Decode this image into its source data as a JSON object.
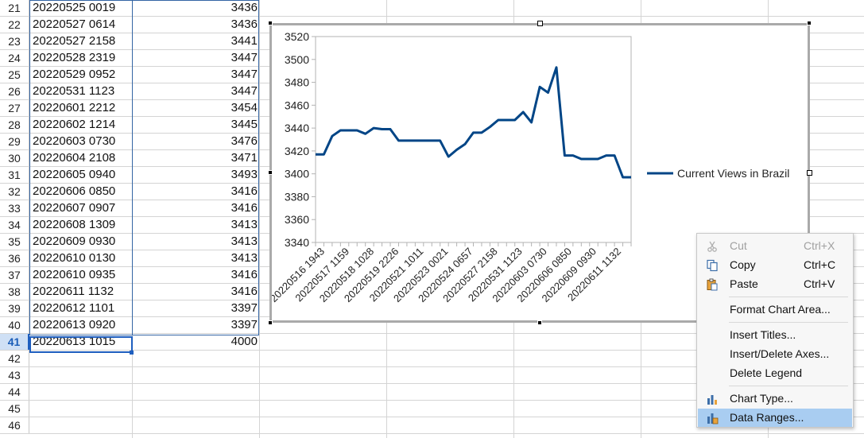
{
  "sheet": {
    "rows": [
      {
        "num": "21",
        "a": "20220525 0019",
        "b": "3436"
      },
      {
        "num": "22",
        "a": "20220527 0614",
        "b": "3436"
      },
      {
        "num": "23",
        "a": "20220527 2158",
        "b": "3441"
      },
      {
        "num": "24",
        "a": "20220528 2319",
        "b": "3447"
      },
      {
        "num": "25",
        "a": "20220529 0952",
        "b": "3447"
      },
      {
        "num": "26",
        "a": "20220531 1123",
        "b": "3447"
      },
      {
        "num": "27",
        "a": "20220601 2212",
        "b": "3454"
      },
      {
        "num": "28",
        "a": "20220602 1214",
        "b": "3445"
      },
      {
        "num": "29",
        "a": "20220603 0730",
        "b": "3476"
      },
      {
        "num": "30",
        "a": "20220604 2108",
        "b": "3471"
      },
      {
        "num": "31",
        "a": "20220605 0940",
        "b": "3493"
      },
      {
        "num": "32",
        "a": "20220606 0850",
        "b": "3416"
      },
      {
        "num": "33",
        "a": "20220607 0907",
        "b": "3416"
      },
      {
        "num": "34",
        "a": "20220608 1309",
        "b": "3413"
      },
      {
        "num": "35",
        "a": "20220609 0930",
        "b": "3413"
      },
      {
        "num": "36",
        "a": "20220610 0130",
        "b": "3413"
      },
      {
        "num": "37",
        "a": "20220610 0935",
        "b": "3416"
      },
      {
        "num": "38",
        "a": "20220611 1132",
        "b": "3416"
      },
      {
        "num": "39",
        "a": "20220612 1101",
        "b": "3397"
      },
      {
        "num": "40",
        "a": "20220613 0920",
        "b": "3397"
      },
      {
        "num": "41",
        "a": "20220613 1015",
        "b": "4000"
      },
      {
        "num": "42",
        "a": "",
        "b": ""
      },
      {
        "num": "43",
        "a": "",
        "b": ""
      },
      {
        "num": "44",
        "a": "",
        "b": ""
      },
      {
        "num": "45",
        "a": "",
        "b": ""
      },
      {
        "num": "46",
        "a": "",
        "b": ""
      }
    ],
    "active_row": "41",
    "selection_color": "#1f5fbf"
  },
  "chart_data": {
    "type": "line",
    "title": "",
    "xlabel": "",
    "ylabel": "",
    "ylim": [
      3340,
      3520
    ],
    "yticks": [
      "3520",
      "3500",
      "3480",
      "3460",
      "3440",
      "3420",
      "3400",
      "3380",
      "3360",
      "3340"
    ],
    "xtick_labels": [
      "20220516 1943",
      "20220517 1159",
      "20220518 1028",
      "20220519 2226",
      "20220521 1011",
      "20220523 0021",
      "20220524 0657",
      "20220527 2158",
      "20220531 1123",
      "20220603 0730",
      "20220606 0850",
      "20220609 0930",
      "20220611 1132"
    ],
    "series": [
      {
        "name": "Current Views in Brazil",
        "color": "#004586",
        "values": [
          3417,
          3417,
          3433,
          3438,
          3438,
          3438,
          3435,
          3440,
          3439,
          3439,
          3429,
          3429,
          3429,
          3429,
          3429,
          3429,
          3415,
          3421,
          3426,
          3436,
          3436,
          3441,
          3447,
          3447,
          3447,
          3454,
          3445,
          3476,
          3471,
          3493,
          3416,
          3416,
          3413,
          3413,
          3413,
          3416,
          3416,
          3397,
          3397
        ]
      }
    ],
    "legend_position": "right",
    "grid": false
  },
  "context_menu": {
    "items": [
      {
        "label": "Cut",
        "shortcut": "Ctrl+X",
        "icon": "scissors-icon",
        "disabled": true
      },
      {
        "label": "Copy",
        "shortcut": "Ctrl+C",
        "icon": "copy-icon",
        "disabled": false
      },
      {
        "label": "Paste",
        "shortcut": "Ctrl+V",
        "icon": "paste-icon",
        "disabled": false
      },
      {
        "label": "Format Chart Area...",
        "shortcut": "",
        "icon": "",
        "disabled": false
      },
      {
        "label": "Insert Titles...",
        "shortcut": "",
        "icon": "",
        "disabled": false
      },
      {
        "label": "Insert/Delete Axes...",
        "shortcut": "",
        "icon": "",
        "disabled": false
      },
      {
        "label": "Delete Legend",
        "shortcut": "",
        "icon": "",
        "disabled": false
      },
      {
        "label": "Chart Type...",
        "shortcut": "",
        "icon": "chart-type-icon",
        "disabled": false
      },
      {
        "label": "Data Ranges...",
        "shortcut": "",
        "icon": "data-ranges-icon",
        "disabled": false,
        "highlighted": true
      }
    ]
  }
}
